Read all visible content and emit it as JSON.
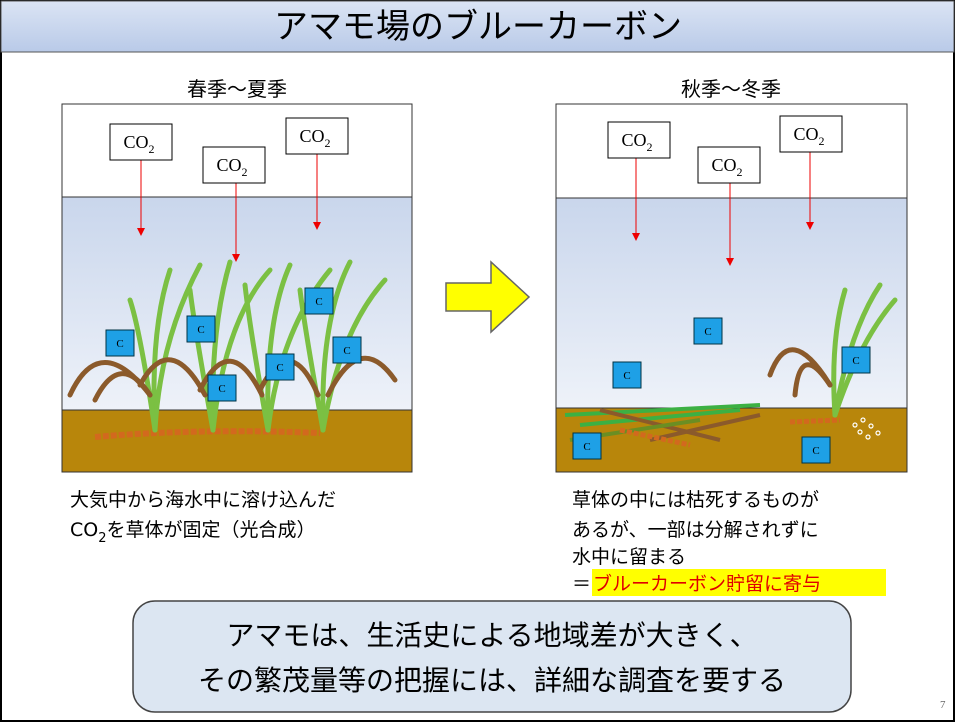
{
  "header": {
    "title": "アマモ場のブルーカーボン"
  },
  "panels": [
    {
      "label": "春季～夏季",
      "co2_boxes": [
        {
          "main": "CO",
          "sub": "2"
        },
        {
          "main": "CO",
          "sub": "2"
        },
        {
          "main": "CO",
          "sub": "2"
        }
      ],
      "carbon_boxes": [
        "C",
        "C",
        "C",
        "C",
        "C",
        "C"
      ],
      "caption": {
        "line1": "大気中から海水中に溶け込んだ",
        "line2_main": "CO",
        "line2_sub": "2",
        "line2_rest": "を草体が固定（光合成）"
      }
    },
    {
      "label": "秋季～冬季",
      "co2_boxes": [
        {
          "main": "CO",
          "sub": "2"
        },
        {
          "main": "CO",
          "sub": "2"
        },
        {
          "main": "CO",
          "sub": "2"
        }
      ],
      "carbon_boxes": [
        "C",
        "C",
        "C",
        "C",
        "C"
      ],
      "caption": {
        "line1": "草体の中には枯死するものが",
        "line2": "あるが、一部は分解されずに",
        "line3": "水中に留まる",
        "line4_prefix": "＝",
        "line4_highlight": "ブルーカーボン貯留に寄与"
      }
    }
  ],
  "conclusion": {
    "line1": "アマモは、生活史による地域差が大きく、",
    "line2": "その繁茂量等の把握には、詳細な調査を要する"
  },
  "page_number": "7"
}
